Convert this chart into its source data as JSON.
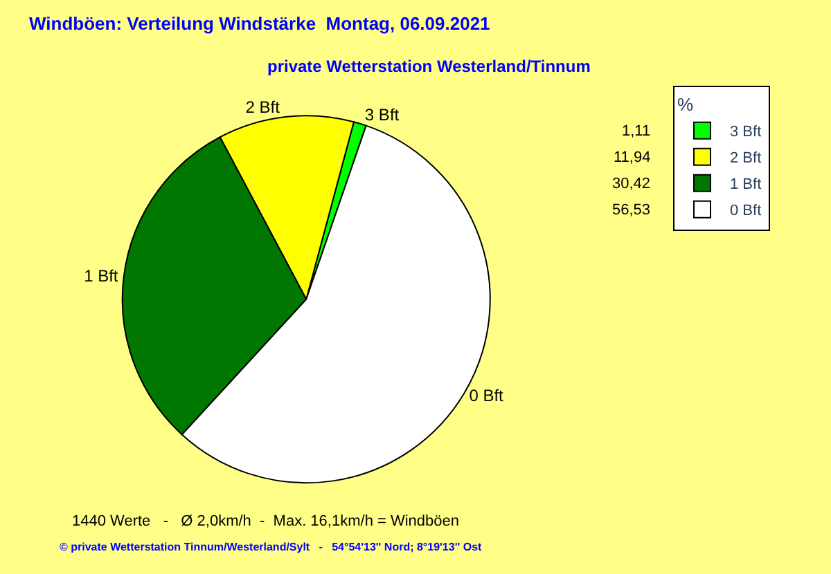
{
  "chart_data": {
    "type": "pie",
    "title": "Windböen: Verteilung Windstärke  Montag, 06.09.2021",
    "subtitle": "private Wetterstation Westerland/Tinnum",
    "categories": [
      "3 Bft",
      "2 Bft",
      "1 Bft",
      "0 Bft"
    ],
    "values": [
      1.11,
      11.94,
      30.42,
      56.53
    ],
    "value_labels": [
      "1,11",
      "11,94",
      "30,42",
      "56,53"
    ],
    "colors": [
      "#00ff00",
      "#ffff00",
      "#007700",
      "#ffffff"
    ],
    "legend": "top right",
    "legend_title": "%",
    "annotations": [
      "1440 Werte   -   Ø 2,0km/h  -  Max. 16,1km/h = Windböen",
      "© private Wetterstation Tinnum/Westerland/Sylt   -   54°54'13'' Nord; 8°19'13'' Ost"
    ]
  }
}
